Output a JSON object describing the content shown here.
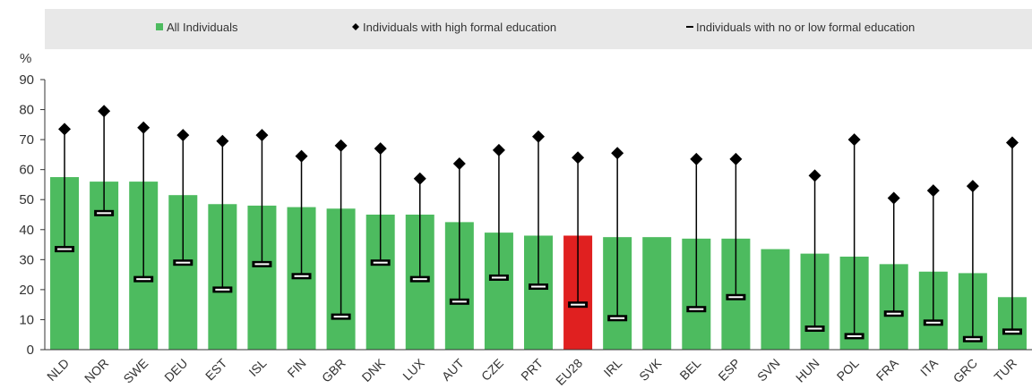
{
  "chart_data": {
    "type": "bar",
    "ylabel": "%",
    "ylim": [
      0,
      90
    ],
    "yticks": [
      0,
      10,
      20,
      30,
      40,
      50,
      60,
      70,
      80,
      90
    ],
    "grid": false,
    "legend_position": "top",
    "categories": [
      "NLD",
      "NOR",
      "SWE",
      "DEU",
      "EST",
      "ISL",
      "FIN",
      "GBR",
      "DNK",
      "LUX",
      "AUT",
      "CZE",
      "PRT",
      "EU28",
      "IRL",
      "SVK",
      "BEL",
      "ESP",
      "SVN",
      "HUN",
      "POL",
      "FRA",
      "ITA",
      "GRC",
      "TUR"
    ],
    "highlight_category": "EU28",
    "series": [
      {
        "name": "All Individuals",
        "marker": "bar",
        "values": [
          57.5,
          56,
          56,
          51.5,
          48.5,
          48,
          47.5,
          47,
          45,
          45,
          42.5,
          39,
          38,
          38,
          37.5,
          37.5,
          37,
          37,
          33.5,
          32,
          31,
          28.5,
          26,
          25.5,
          17.5
        ]
      },
      {
        "name": "Individuals with high formal education",
        "marker": "diamond",
        "values": [
          73.5,
          79.5,
          74,
          71.5,
          69.5,
          71.5,
          64.5,
          68,
          67,
          57,
          62,
          66.5,
          71,
          64,
          65.5,
          null,
          63.5,
          63.5,
          null,
          58,
          70,
          50.5,
          53,
          54.5,
          69
        ]
      },
      {
        "name": "Individuals with no or low formal education",
        "marker": "dash",
        "values": [
          33.5,
          45.5,
          23.5,
          29,
          20,
          28.5,
          24.5,
          11,
          29,
          23.5,
          16,
          24,
          21,
          15,
          10.5,
          null,
          13.5,
          17.5,
          null,
          7,
          4.5,
          12,
          9,
          3.5,
          6
        ]
      }
    ],
    "colors": {
      "bar": "#4dbb5f",
      "highlight": "#e02020",
      "marker": "#000000",
      "legend_bg": "#e8e8e8",
      "axis": "#333333"
    }
  }
}
